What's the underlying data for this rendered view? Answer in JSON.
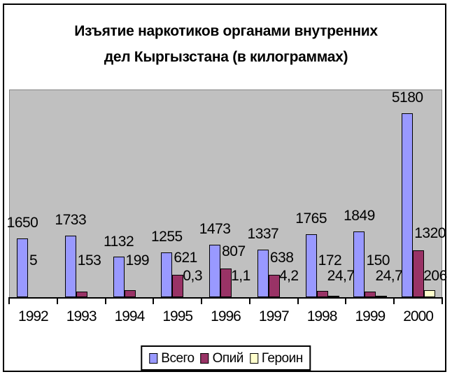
{
  "chart_data": {
    "type": "bar",
    "title": "Изъятие наркотиков органами внутренних дел Кыргызстана (в килограммах)",
    "title_lines": [
      "Изъятие наркотиков органами внутренних",
      "дел Кыргызстана (в килограммах)"
    ],
    "categories": [
      "1992",
      "1993",
      "1994",
      "1995",
      "1996",
      "1997",
      "1998",
      "1999",
      "2000"
    ],
    "series": [
      {
        "name": "Всего",
        "color": "#9999FF",
        "values": [
          1650,
          1733,
          1132,
          1255,
          1473,
          1337,
          1765,
          1849,
          5180
        ],
        "labels": [
          "1650",
          "1733",
          "1132",
          "1255",
          "1473",
          "1337",
          "1765",
          "1849",
          "5180"
        ]
      },
      {
        "name": "Опий",
        "color": "#993366",
        "values": [
          5,
          153,
          199,
          621,
          807,
          638,
          172,
          150,
          1320
        ],
        "labels": [
          "5",
          "153",
          "199",
          "621",
          "807",
          "638",
          "172",
          "150",
          "1320"
        ]
      },
      {
        "name": "Героин",
        "color": "#FFFFCC",
        "values": [
          null,
          null,
          null,
          0.3,
          1.1,
          4.2,
          24.7,
          24.7,
          206
        ],
        "labels": [
          null,
          null,
          null,
          "0,3",
          "1,1",
          "4,2",
          "24,7",
          "24,7",
          "206"
        ]
      }
    ],
    "legend": {
      "position": "bottom",
      "entries": [
        "Всего",
        "Опий",
        "Героин"
      ]
    },
    "y_axis_visible": false,
    "ylim": [
      0,
      5800
    ],
    "plot_background": "#C0C0C0",
    "axis_color": "#000000"
  }
}
